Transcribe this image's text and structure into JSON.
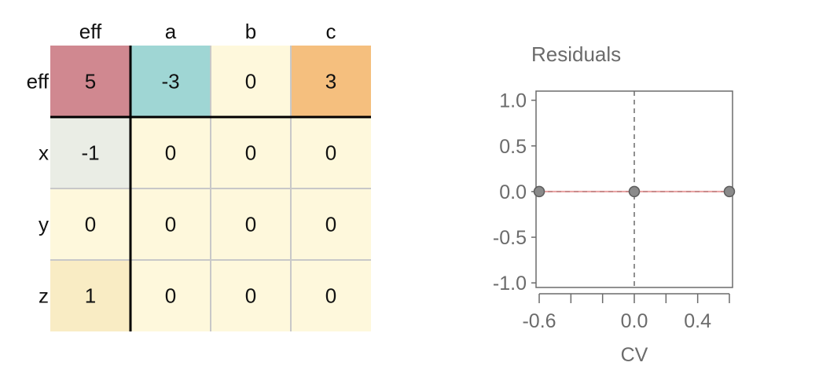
{
  "colors": {
    "bg": "#ffffff",
    "grid_line": "#c8c8c8",
    "separator": "#000000",
    "axis": "#6b6b6b",
    "point_fill": "#8a8a8a",
    "point_stroke": "#5c5c5c",
    "resid_line": "#e8a0a0",
    "zero_line": "#6b6b6b"
  },
  "matrix": {
    "col_headers": [
      "eff",
      "a",
      "b",
      "c"
    ],
    "row_headers": [
      "eff",
      "x",
      "y",
      "z"
    ],
    "rows": [
      {
        "values": [
          "5",
          "-3",
          "0",
          "3"
        ],
        "colors": [
          "#d08890",
          "#9fd6d4",
          "#fef8dc",
          "#f5bf7e"
        ]
      },
      {
        "values": [
          "-1",
          "0",
          "0",
          "0"
        ],
        "colors": [
          "#eaede5",
          "#fef8dc",
          "#fef8dc",
          "#fef8dc"
        ]
      },
      {
        "values": [
          "0",
          "0",
          "0",
          "0"
        ],
        "colors": [
          "#fef8dc",
          "#fef8dc",
          "#fef8dc",
          "#fef8dc"
        ]
      },
      {
        "values": [
          "1",
          "0",
          "0",
          "0"
        ],
        "colors": [
          "#f9ecc4",
          "#fef8dc",
          "#fef8dc",
          "#fef8dc"
        ]
      }
    ]
  },
  "chart_data": {
    "type": "scatter",
    "title": "Residuals",
    "xlabel": "CV",
    "ylabel": "",
    "xlim": [
      -0.62,
      0.62
    ],
    "ylim": [
      -1.05,
      1.1
    ],
    "x_ticks": [
      -0.6,
      -0.4,
      -0.2,
      0.0,
      0.2,
      0.4,
      0.6
    ],
    "x_tick_labels": [
      "-0.6",
      "",
      "",
      "0.0",
      "",
      "0.4",
      ""
    ],
    "y_ticks": [
      1.0,
      0.5,
      0.0,
      -0.5,
      -1.0
    ],
    "y_tick_labels": [
      "1.0",
      "0.5",
      "0.0",
      "-0.5",
      "-1.0"
    ],
    "points": [
      {
        "x": -0.6,
        "y": 0.0
      },
      {
        "x": 0.0,
        "y": 0.0
      },
      {
        "x": 0.6,
        "y": 0.0
      }
    ],
    "reference_lines": {
      "vertical_x": 0.0,
      "horizontal_y": 0.0
    }
  }
}
